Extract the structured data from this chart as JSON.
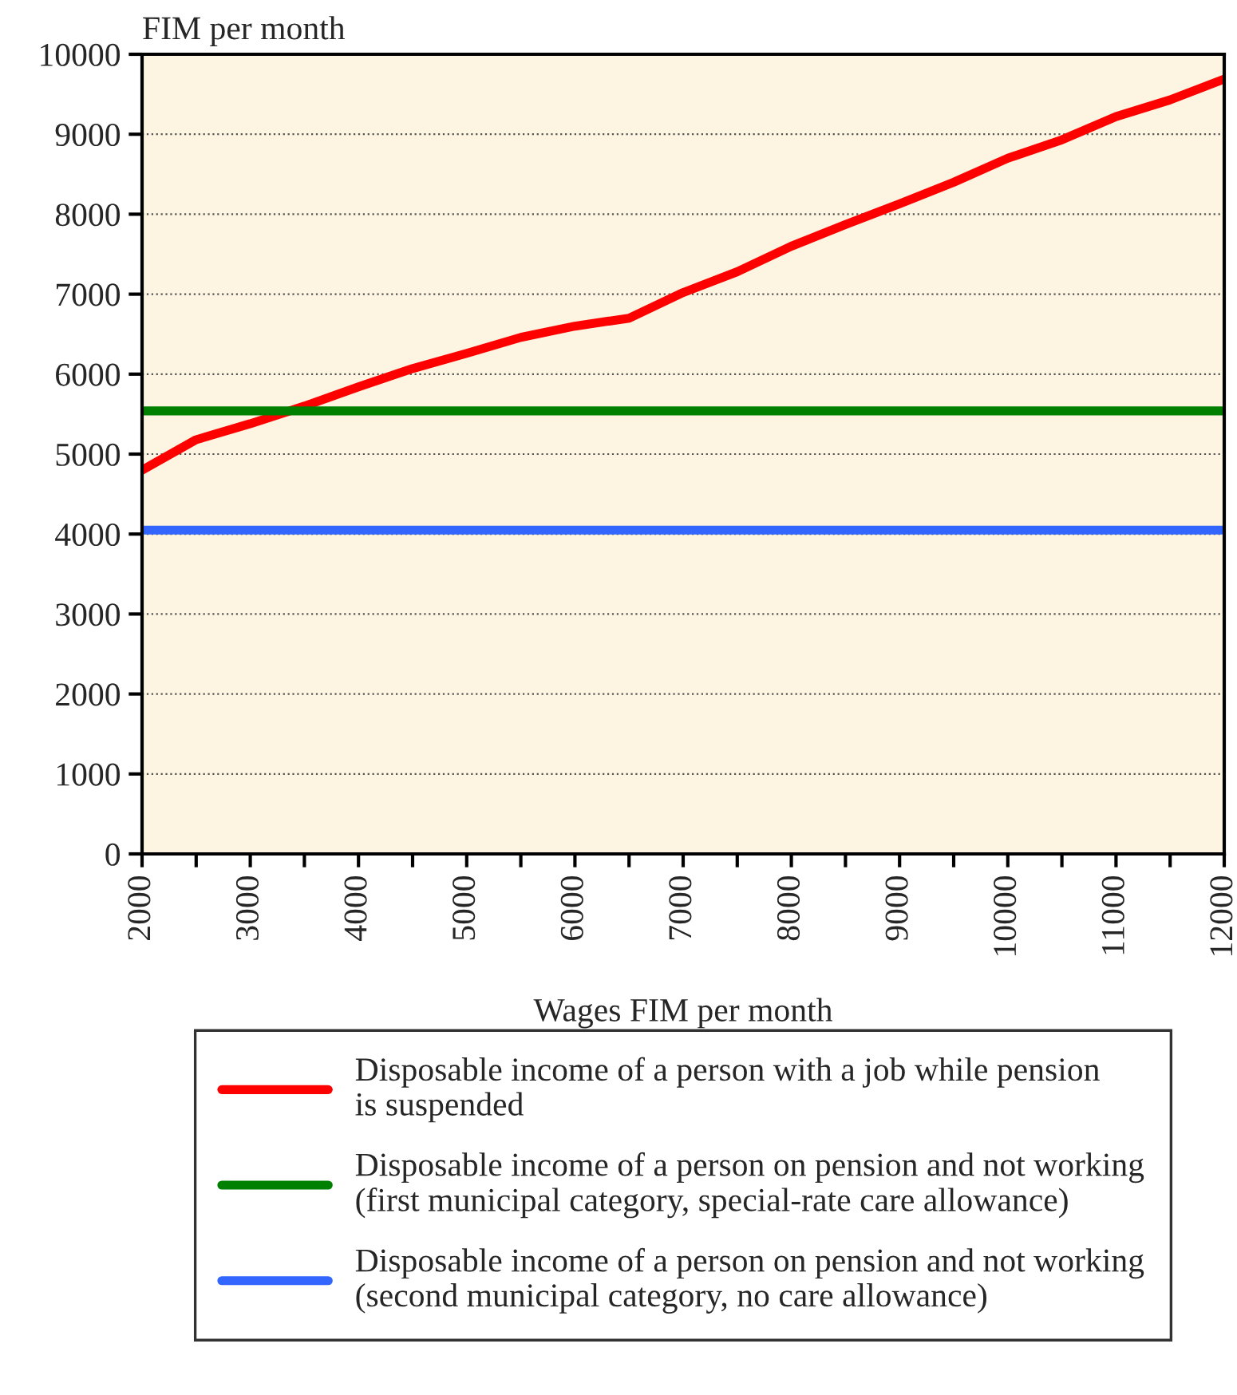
{
  "chart_data": {
    "type": "line",
    "xlabel": "Wages FIM per month",
    "ylabel": "FIM per month",
    "x": [
      2000,
      2500,
      3000,
      3500,
      4000,
      4500,
      5000,
      5500,
      6000,
      6500,
      7000,
      7500,
      8000,
      8500,
      9000,
      9500,
      10000,
      10500,
      11000,
      11500,
      12000
    ],
    "series": [
      {
        "name": "Disposable income of a person with a job while pension is suspended",
        "color": "#ff0000",
        "values": [
          4800,
          5180,
          5380,
          5600,
          5840,
          6070,
          6260,
          6460,
          6600,
          6700,
          7020,
          7280,
          7600,
          7870,
          8130,
          8400,
          8700,
          8930,
          9220,
          9430,
          9690
        ]
      },
      {
        "name": "Disposable income of a person on pension and not working (first municipal category, special-rate care allowance)",
        "color": "#008000",
        "values": [
          5540,
          5540,
          5540,
          5540,
          5540,
          5540,
          5540,
          5540,
          5540,
          5540,
          5540,
          5540,
          5540,
          5540,
          5540,
          5540,
          5540,
          5540,
          5540,
          5540,
          5540
        ]
      },
      {
        "name": "Disposable income of a person on pension and not working (second municipal category, no care allowance)",
        "color": "#3366ff",
        "values": [
          4050,
          4050,
          4050,
          4050,
          4050,
          4050,
          4050,
          4050,
          4050,
          4050,
          4050,
          4050,
          4050,
          4050,
          4050,
          4050,
          4050,
          4050,
          4050,
          4050,
          4050
        ]
      }
    ],
    "xlim": [
      2000,
      12000
    ],
    "xticks": [
      2000,
      {
        "value": 2500,
        "label": null
      },
      3000,
      {
        "value": 3500,
        "label": null
      },
      4000,
      {
        "value": 4500,
        "label": null
      },
      5000,
      {
        "value": 5500,
        "label": null
      },
      6000,
      {
        "value": 6500,
        "label": null
      },
      7000,
      {
        "value": 7500,
        "label": null
      },
      8000,
      {
        "value": 8500,
        "label": null
      },
      9000,
      {
        "value": 9500,
        "label": null
      },
      10000,
      {
        "value": 10500,
        "label": null
      },
      11000,
      {
        "value": 11500,
        "label": null
      },
      12000
    ],
    "ylim": [
      0,
      10000
    ],
    "yticks": [
      0,
      1000,
      2000,
      3000,
      4000,
      5000,
      6000,
      7000,
      8000,
      9000,
      10000
    ],
    "grid": "y",
    "legend": "bottom",
    "marker": "none",
    "line_style": "solid"
  }
}
